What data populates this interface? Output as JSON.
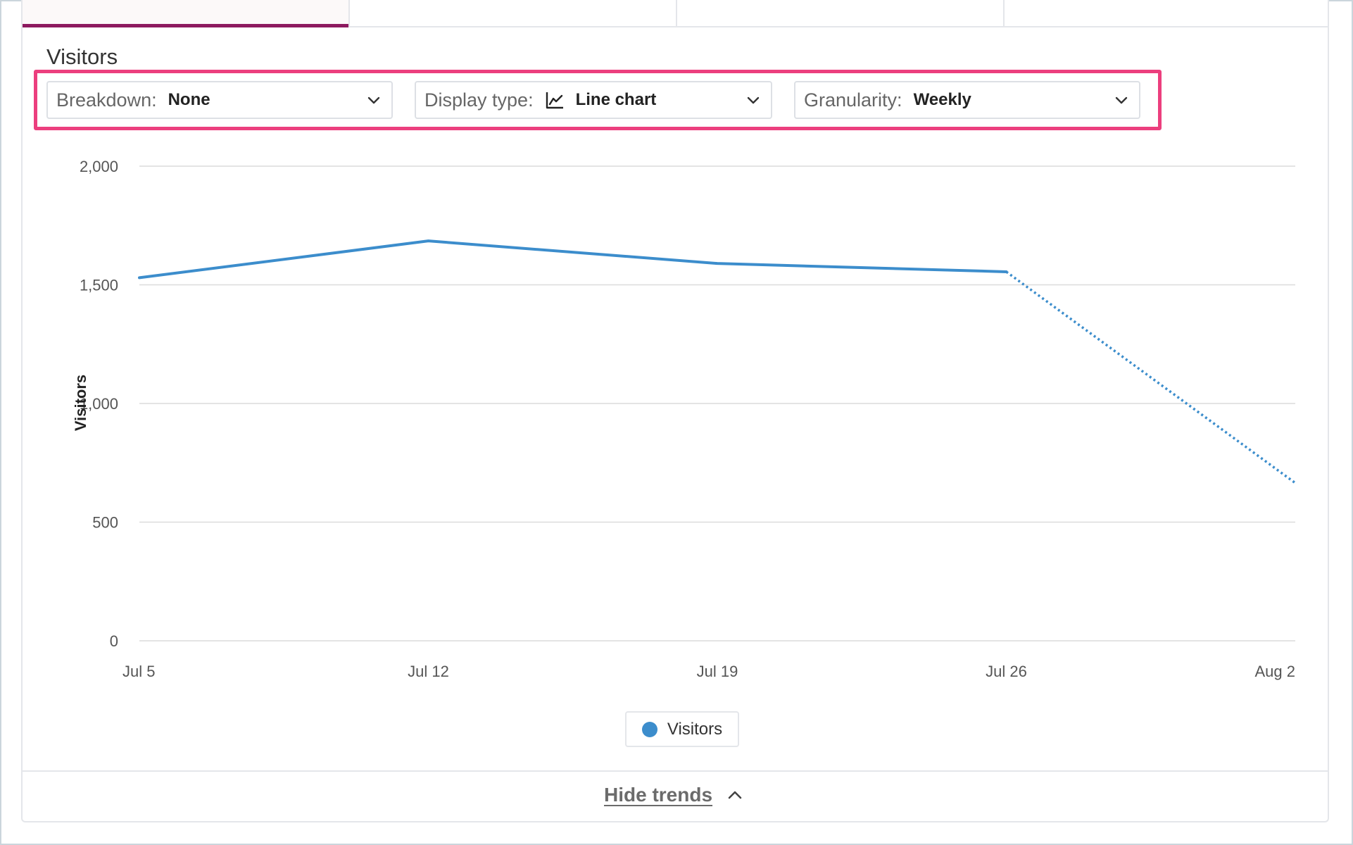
{
  "section": {
    "title": "Visitors"
  },
  "filters": {
    "breakdown": {
      "label": "Breakdown:",
      "value": "None"
    },
    "display_type": {
      "label": "Display type:",
      "value": "Line chart",
      "icon": "line-chart-icon"
    },
    "granularity": {
      "label": "Granularity:",
      "value": "Weekly"
    }
  },
  "chart_data": {
    "type": "line",
    "ylabel": "Visitors",
    "xlabel": "",
    "categories": [
      "Jul 5",
      "Jul 12",
      "Jul 19",
      "Jul 26",
      "Aug 2"
    ],
    "y_ticks": [
      "2,000",
      "1,500",
      "1,000",
      "500",
      "0"
    ],
    "ylim": [
      0,
      2000
    ],
    "grid": true,
    "series": [
      {
        "name": "Visitors",
        "values": [
          1530,
          1685,
          1590,
          1555,
          665
        ],
        "color": "#3c8dcc",
        "incomplete_from_index": 3
      }
    ],
    "legend": {
      "placement": "bottom-center"
    }
  },
  "legend": {
    "label": "Visitors"
  },
  "footer": {
    "toggle_label": "Hide trends"
  },
  "colors": {
    "accent_tab": "#8d1a5f",
    "highlight": "#ec3f7e",
    "series": "#3c8dcc"
  }
}
